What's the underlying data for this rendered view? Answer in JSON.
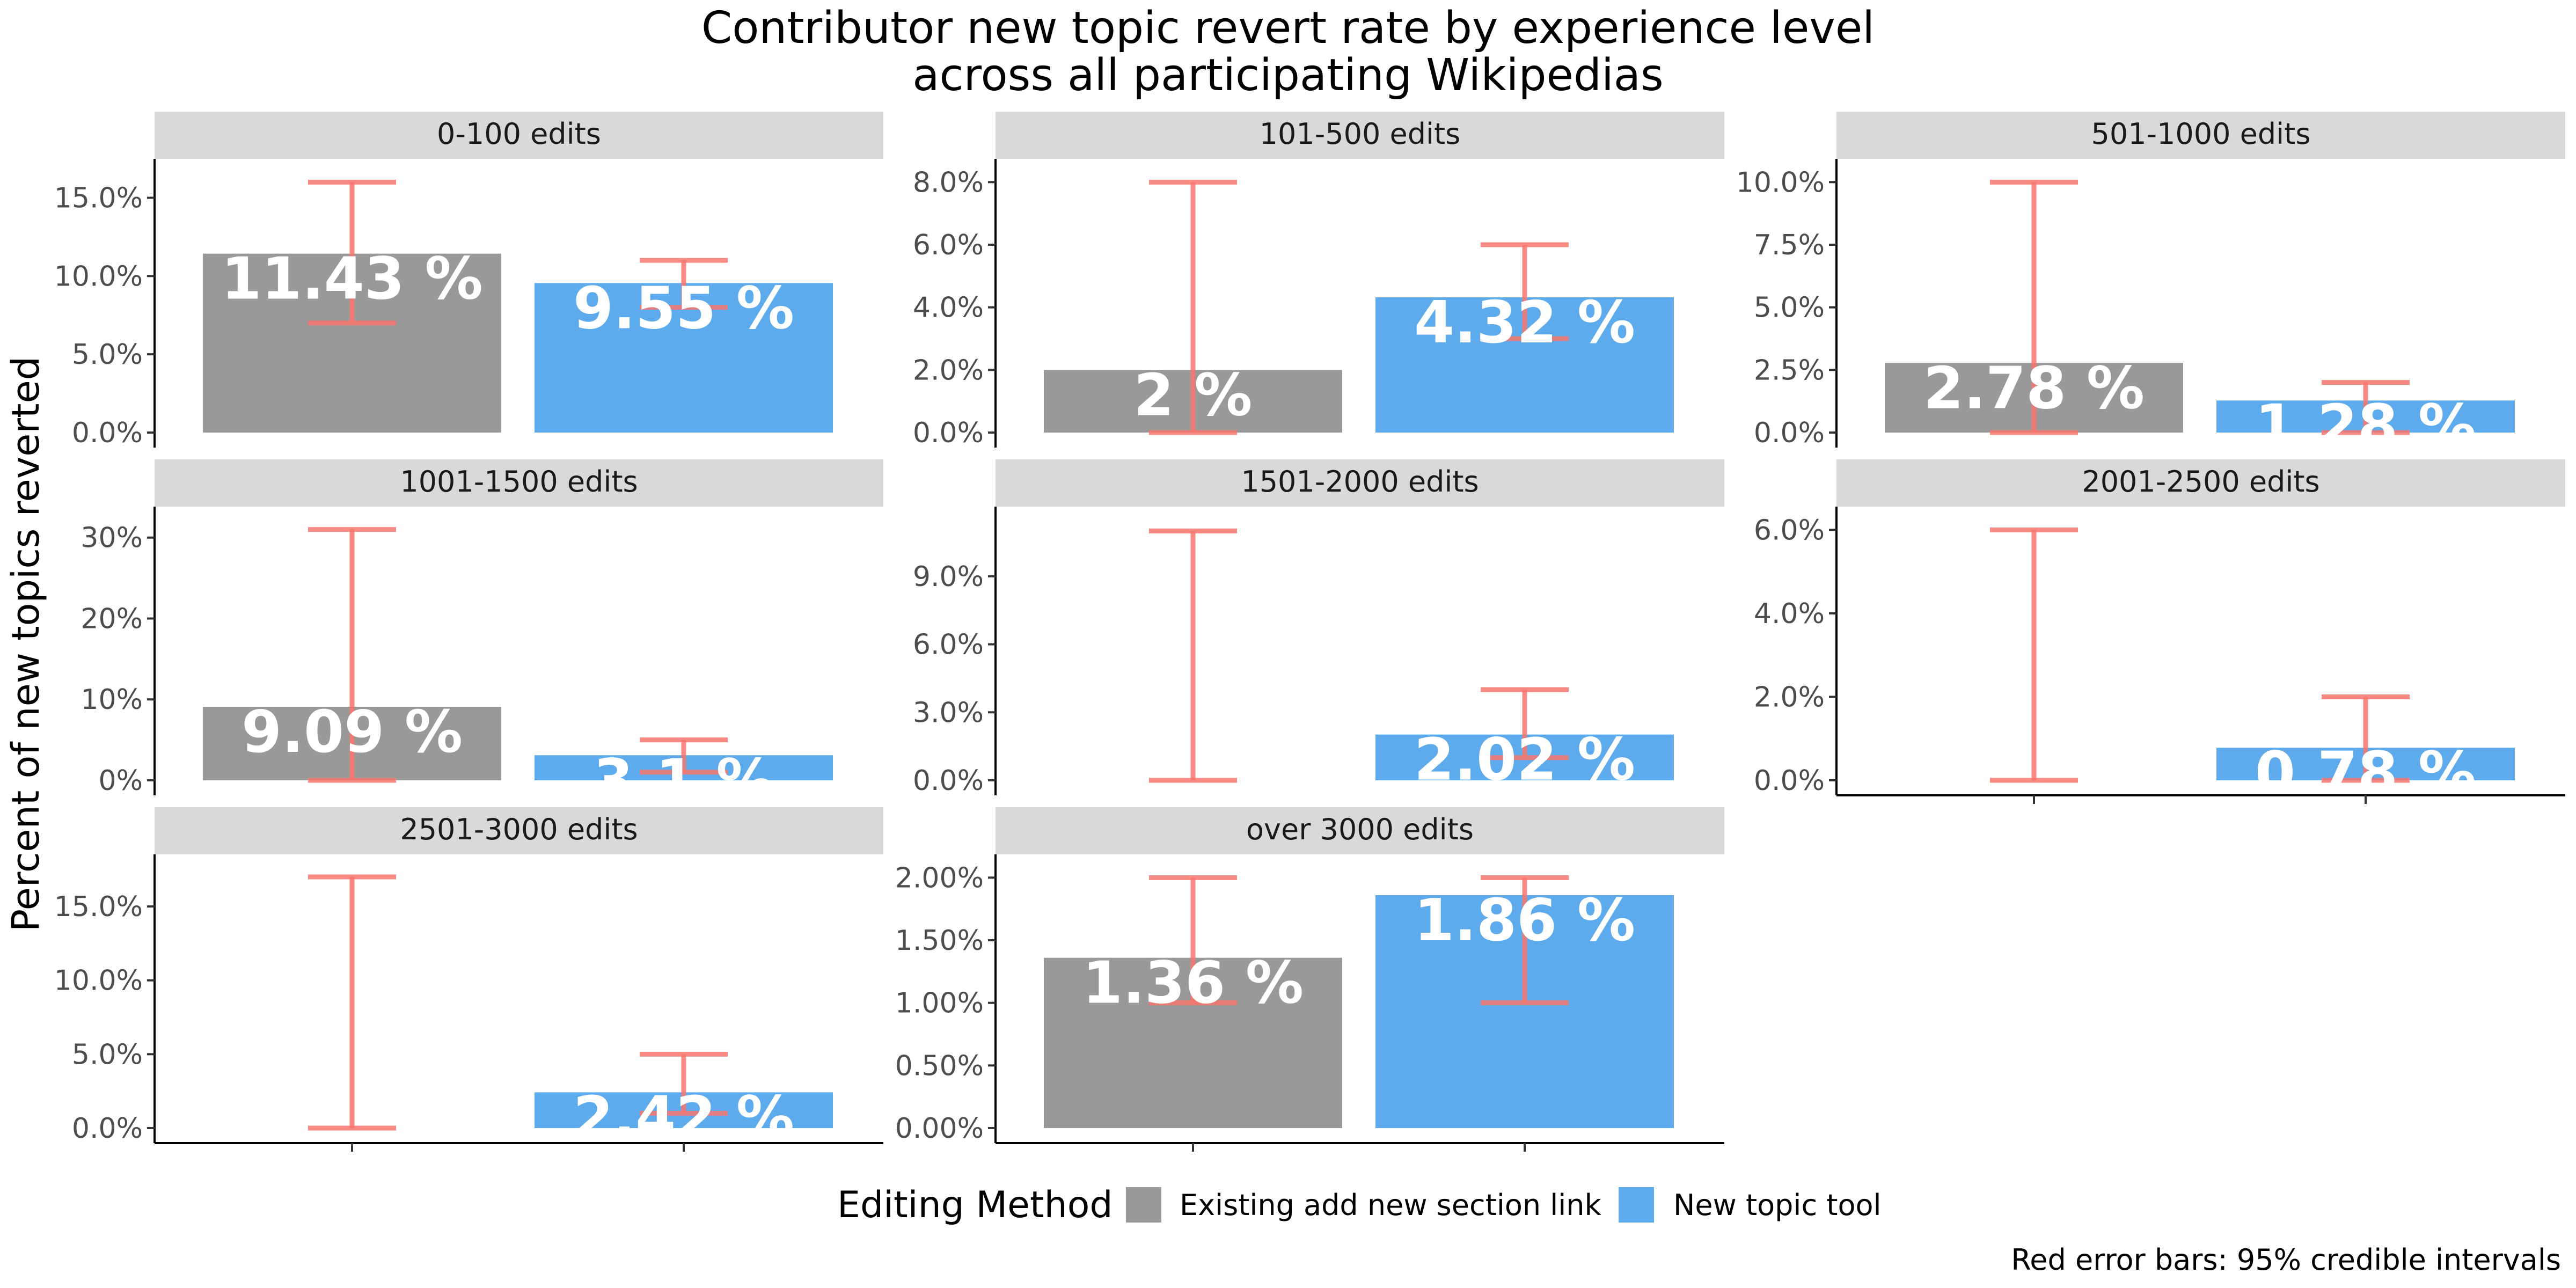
{
  "chart_data": {
    "type": "bar",
    "title_lines": [
      "Contributor new topic revert rate by experience level",
      "across all participating Wikipedias"
    ],
    "ylabel": "Percent of new topics reverted",
    "legend": {
      "title": "Editing Method",
      "position": "bottom",
      "entries": [
        {
          "name": "Existing add new section link",
          "color": "#999999"
        },
        {
          "name": "New topic tool",
          "color": "#5dabec"
        }
      ]
    },
    "caption": "Red error bars: 95% credible intervals",
    "error_bar_color": "#f8766d",
    "panels": [
      {
        "title": "0-100 edits",
        "ylim": [
          0,
          16.8
        ],
        "ticks": [
          0,
          5,
          10,
          15
        ],
        "tick_labels": [
          "0.0%",
          "5.0%",
          "10.0%",
          "15.0%"
        ],
        "series": [
          {
            "name": "Existing add new section link",
            "value": 11.43,
            "label": "11.43 %",
            "ci": [
              7,
              16
            ]
          },
          {
            "name": "New topic tool",
            "value": 9.55,
            "label": "9.55 %",
            "ci": [
              8,
              11
            ]
          }
        ]
      },
      {
        "title": "101-500 edits",
        "ylim": [
          0,
          8.4
        ],
        "ticks": [
          0,
          2,
          4,
          6,
          8
        ],
        "tick_labels": [
          "0.0%",
          "2.0%",
          "4.0%",
          "6.0%",
          "8.0%"
        ],
        "series": [
          {
            "name": "Existing add new section link",
            "value": 2.0,
            "label": "2 %",
            "ci": [
              0,
              8
            ]
          },
          {
            "name": "New topic tool",
            "value": 4.32,
            "label": "4.32 %",
            "ci": [
              3,
              6
            ]
          }
        ]
      },
      {
        "title": "501-1000 edits",
        "ylim": [
          0,
          10.5
        ],
        "ticks": [
          0,
          2.5,
          5,
          7.5,
          10
        ],
        "tick_labels": [
          "0.0%",
          "2.5%",
          "5.0%",
          "7.5%",
          "10.0%"
        ],
        "series": [
          {
            "name": "Existing add new section link",
            "value": 2.78,
            "label": "2.78 %",
            "ci": [
              0,
              10
            ]
          },
          {
            "name": "New topic tool",
            "value": 1.28,
            "label": "1.28 %",
            "ci": [
              0,
              2
            ]
          }
        ]
      },
      {
        "title": "1001-1500 edits",
        "ylim": [
          0,
          32.5
        ],
        "ticks": [
          0,
          10,
          20,
          30
        ],
        "tick_labels": [
          "0%",
          "10%",
          "20%",
          "30%"
        ],
        "series": [
          {
            "name": "Existing add new section link",
            "value": 9.09,
            "label": "9.09 %",
            "ci": [
              0,
              31
            ]
          },
          {
            "name": "New topic tool",
            "value": 3.1,
            "label": "3.1 %",
            "ci": [
              1,
              5
            ]
          }
        ]
      },
      {
        "title": "1501-2000 edits",
        "ylim": [
          0,
          11.6
        ],
        "ticks": [
          0,
          3,
          6,
          9
        ],
        "tick_labels": [
          "0.0%",
          "3.0%",
          "6.0%",
          "9.0%"
        ],
        "series": [
          {
            "name": "Existing add new section link",
            "value": 0,
            "label": "",
            "ci": [
              0,
              11
            ]
          },
          {
            "name": "New topic tool",
            "value": 2.02,
            "label": "2.02 %",
            "ci": [
              1,
              4
            ]
          }
        ]
      },
      {
        "title": "2001-2500 edits",
        "ylim": [
          0,
          6.3
        ],
        "ticks": [
          0,
          2,
          4,
          6
        ],
        "tick_labels": [
          "0.0%",
          "2.0%",
          "4.0%",
          "6.0%"
        ],
        "series": [
          {
            "name": "Existing add new section link",
            "value": 0,
            "label": "",
            "ci": [
              0,
              6
            ]
          },
          {
            "name": "New topic tool",
            "value": 0.78,
            "label": "0.78 %",
            "ci": [
              0,
              2
            ]
          }
        ]
      },
      {
        "title": "2501-3000 edits",
        "ylim": [
          0,
          17.8
        ],
        "ticks": [
          0,
          5,
          10,
          15
        ],
        "tick_labels": [
          "0.0%",
          "5.0%",
          "10.0%",
          "15.0%"
        ],
        "series": [
          {
            "name": "Existing add new section link",
            "value": 0,
            "label": "",
            "ci": [
              0,
              17
            ]
          },
          {
            "name": "New topic tool",
            "value": 2.42,
            "label": "2.42 %",
            "ci": [
              1,
              5
            ]
          }
        ]
      },
      {
        "title": "over 3000 edits",
        "ylim": [
          0,
          2.1
        ],
        "ticks": [
          0,
          0.5,
          1,
          1.5,
          2
        ],
        "tick_labels": [
          "0.00%",
          "0.50%",
          "1.00%",
          "1.50%",
          "2.00%"
        ],
        "series": [
          {
            "name": "Existing add new section link",
            "value": 1.36,
            "label": "1.36 %",
            "ci": [
              1,
              2
            ]
          },
          {
            "name": "New topic tool",
            "value": 1.86,
            "label": "1.86 %",
            "ci": [
              1,
              2
            ]
          }
        ]
      }
    ]
  }
}
